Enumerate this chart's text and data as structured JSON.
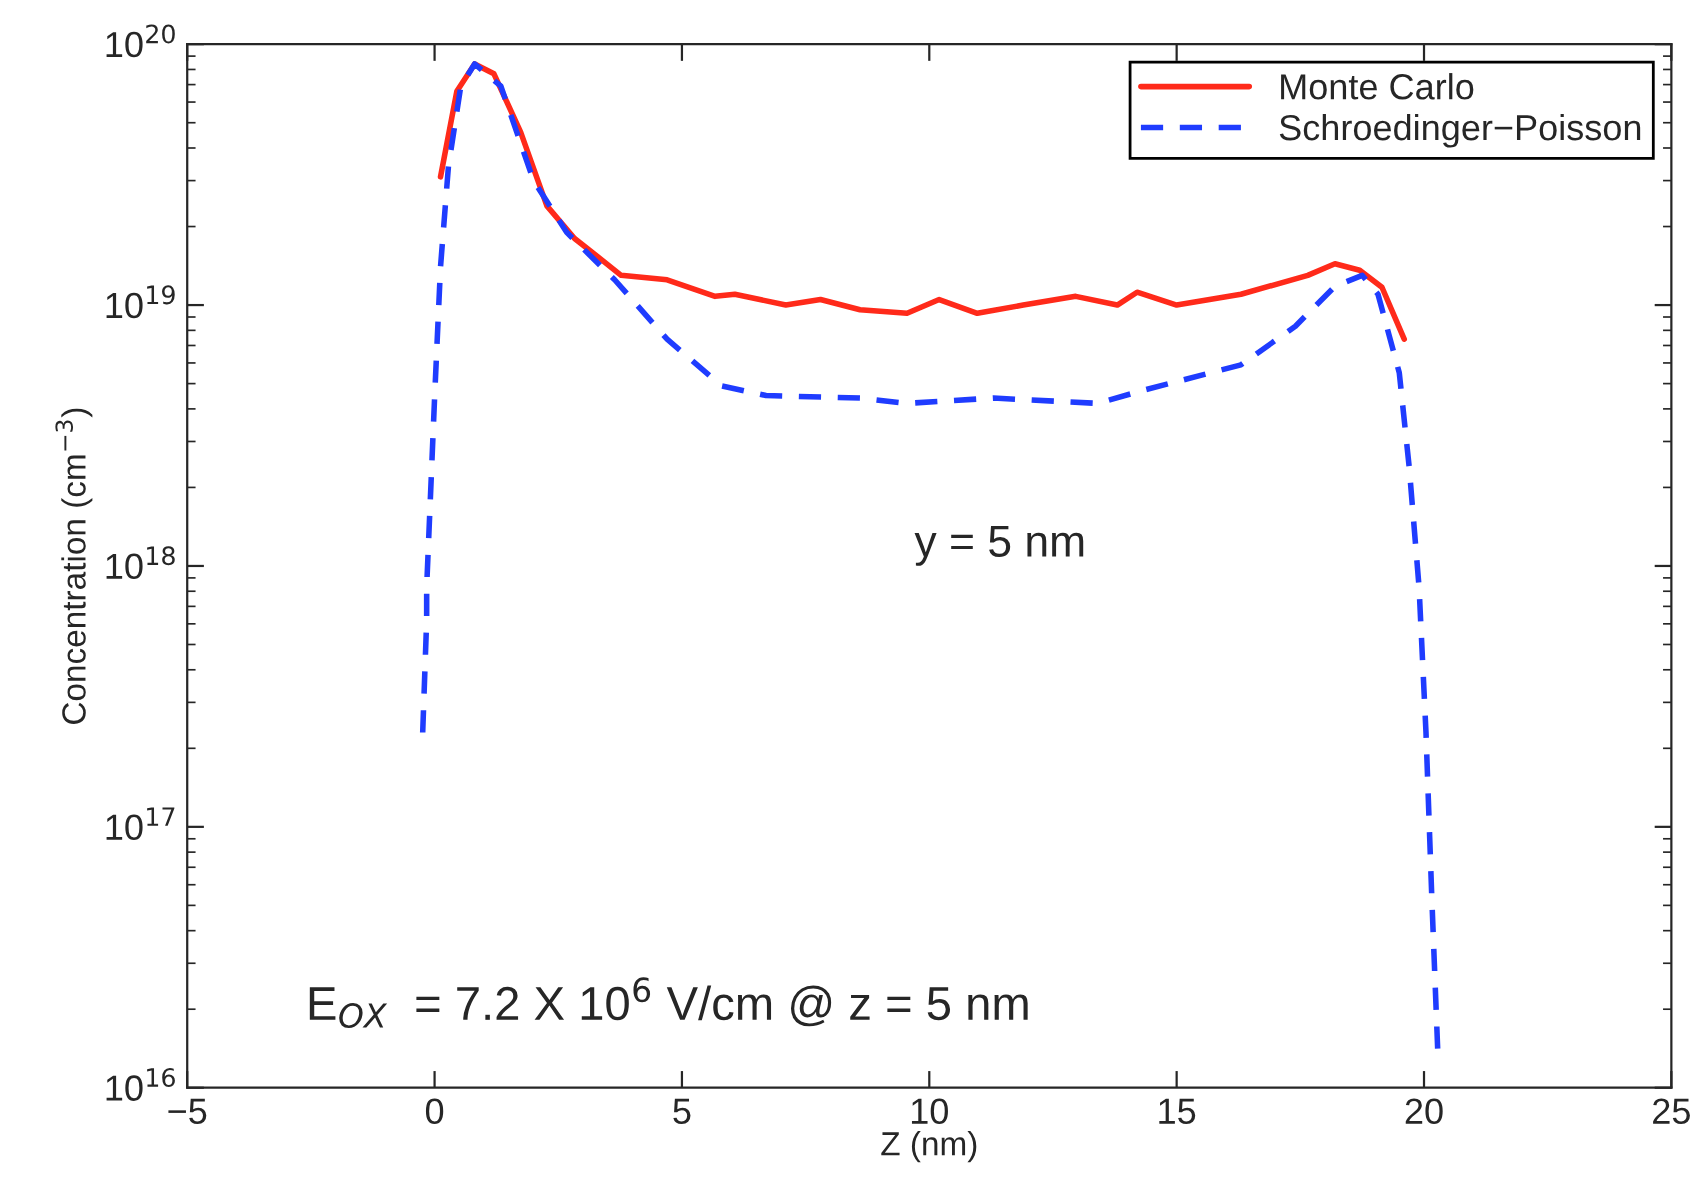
{
  "chart_data": {
    "type": "line",
    "xlabel": "Z (nm)",
    "ylabel": "Concentration (cm$^{−3}$)",
    "log": "y",
    "grid": false,
    "legend": "top right",
    "xlim": [
      -5,
      25
    ],
    "xticks": [
      -5,
      0,
      5,
      10,
      15,
      20,
      25
    ],
    "ylim": [
      1e+16,
      1e+20
    ],
    "yticks": [
      {
        "value": 1e+16,
        "label": "10$^{16}$"
      },
      {
        "value": 1e+17,
        "label": "10$^{17}$"
      },
      {
        "value": 1e+18,
        "label": "10$^{18}$"
      },
      {
        "value": 1e+19,
        "label": "10$^{19}$"
      },
      {
        "value": 1e+20,
        "label": "10$^{20}$"
      }
    ],
    "annotations": [
      "y = 5 nm",
      "E$_{OX}$  = 7.2 X 10$^{6}$ V/cm @ z = 5 nm"
    ],
    "series": [
      {
        "name": "Monte Carlo",
        "color": "#ff2a1a",
        "line_style": "solid",
        "x": [
          0.12,
          0.45,
          0.81,
          1.2,
          1.74,
          2.27,
          2.83,
          3.36,
          3.77,
          4.7,
          5.67,
          6.07,
          7.1,
          7.8,
          8.6,
          9.55,
          10.2,
          10.97,
          11.9,
          12.96,
          13.8,
          14.2,
          15.0,
          16.3,
          17.65,
          18.2,
          18.7,
          19.15,
          19.6
        ],
        "values": [
          3.1e+19,
          6.6e+19,
          8.4e+19,
          7.7e+19,
          4.6e+19,
          2.4e+19,
          1.8e+19,
          1.5e+19,
          1.3e+19,
          1.25e+19,
          1.08e+19,
          1.1e+19,
          1e+19,
          1.05e+19,
          9.6e+18,
          9.3e+18,
          1.05e+19,
          9.3e+18,
          1e+19,
          1.08e+19,
          1e+19,
          1.12e+19,
          1e+19,
          1.1e+19,
          1.3e+19,
          1.44e+19,
          1.36e+19,
          1.17e+19,
          7.4e+18
        ]
      },
      {
        "name": "Schroedinger−Poisson",
        "color": "#1f3cff",
        "line_style": "dashed",
        "x": [
          -0.24,
          -0.16,
          -0.16,
          0.0,
          0.12,
          0.28,
          0.53,
          0.81,
          1.34,
          2.0,
          2.67,
          3.64,
          4.7,
          5.8,
          6.7,
          8.6,
          9.55,
          11.3,
          13.4,
          14.3,
          16.3,
          17.4,
          18.2,
          18.75,
          19.07,
          19.5,
          19.7,
          19.9,
          20.04,
          20.16,
          20.28
        ],
        "values": [
          2.3e+17,
          6.2e+17,
          8.3e+17,
          4.4e+18,
          1.4e+19,
          3.4e+19,
          6.9e+19,
          8.4e+19,
          6.9e+19,
          3e+19,
          1.9e+19,
          1.25e+19,
          7.4e+18,
          4.9e+18,
          4.5e+18,
          4.4e+18,
          4.2e+18,
          4.4e+18,
          4.2e+18,
          4.7e+18,
          5.9e+18,
          8.3e+18,
          1.18e+19,
          1.3e+19,
          1.1e+19,
          5.5e+18,
          2.4e+18,
          8.3e+17,
          2.3e+17,
          5.2e+16,
          1.35e+16
        ]
      }
    ]
  }
}
